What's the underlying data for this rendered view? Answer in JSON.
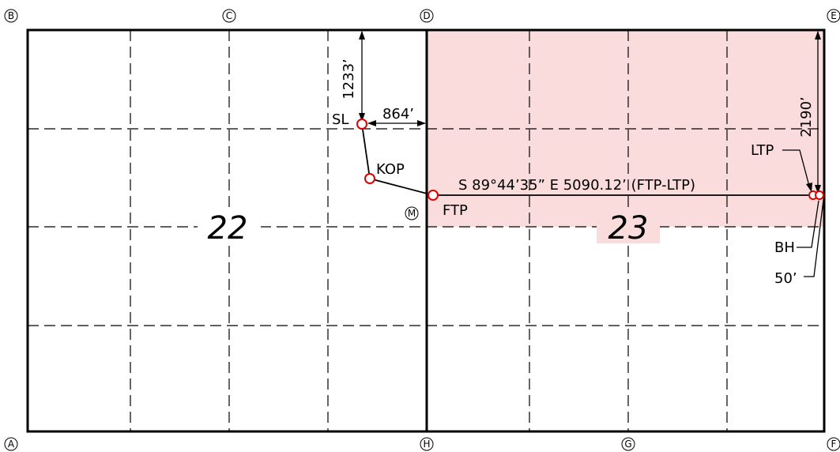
{
  "section_labels": [
    "22",
    "23"
  ],
  "corner_labels": {
    "A": "A",
    "B": "B",
    "C": "C",
    "D": "D",
    "E": "E",
    "F": "F",
    "G": "G",
    "H": "H",
    "M": "M"
  },
  "points": {
    "sl": "SL",
    "kop": "KOP",
    "ftp": "FTP",
    "ltp": "LTP",
    "bh": "BH"
  },
  "dimensions": {
    "north_offset": "1233’",
    "west_offset": "864’",
    "east_offset": "2190’",
    "bh_offset": "50’"
  },
  "bearing_label": "S 89°44’35” E 5090.12’ (FTP-LTP)",
  "colors": {
    "highlight": "#fadcdc",
    "marker": "#e00000",
    "lines": "#000000"
  }
}
